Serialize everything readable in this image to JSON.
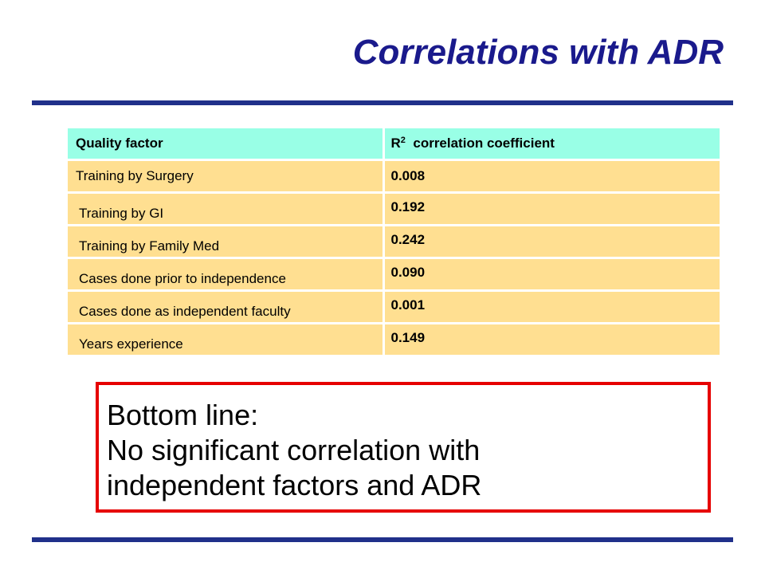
{
  "slide": {
    "title": "Correlations with ADR"
  },
  "table": {
    "headers": {
      "factor": "Quality factor",
      "coefficient_prefix": "R",
      "coefficient_superscript": "2",
      "coefficient_suffix": "correlation coefficient"
    },
    "rows": [
      {
        "factor": "Training by Surgery",
        "value": "0.008"
      },
      {
        "factor": "Training by GI",
        "value": "0.192"
      },
      {
        "factor": "Training by Family Med",
        "value": "0.242"
      },
      {
        "factor": "Cases done prior to independence",
        "value": "0.090"
      },
      {
        "factor": "Cases done as independent faculty",
        "value": "0.001"
      },
      {
        "factor": "Years experience",
        "value": "0.149"
      }
    ]
  },
  "callout": {
    "lines": [
      "Bottom line:",
      "No significant correlation with",
      "independent factors and ADR"
    ]
  },
  "colors": {
    "title": "#1a1a8c",
    "rule": "#20308a",
    "header_fill": "#99ffe6",
    "row_fill": "#ffdf91",
    "callout_border": "#e60000"
  }
}
